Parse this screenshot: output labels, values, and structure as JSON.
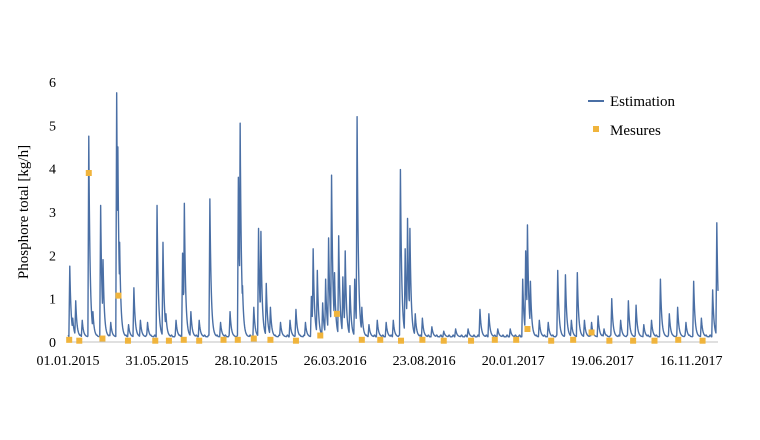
{
  "chart_data": {
    "type": "line",
    "title": "",
    "xlabel": "",
    "ylabel": "Phosphore total [kg/h]",
    "ylim": [
      0,
      6
    ],
    "yticks": [
      0,
      1,
      2,
      3,
      4,
      5,
      6
    ],
    "xlim": [
      "2015-01-01",
      "2017-12-31"
    ],
    "xticks": [
      "2015-01-01",
      "2015-05-31",
      "2015-10-28",
      "2016-03-26",
      "2016-08-23",
      "2017-01-20",
      "2017-06-19",
      "2017-11-16"
    ],
    "xtick_labels": [
      "01.01.2015",
      "31.05.2015",
      "28.10.2015",
      "26.03.2016",
      "23.08.2016",
      "20.01.2017",
      "19.06.2017",
      "16.11.2017"
    ],
    "grid": false,
    "legend_position": "top-right",
    "colors": {
      "estimation": "#4a6fa5",
      "mesures": "#f0b43c"
    },
    "series": [
      {
        "name": "Estimation",
        "kind": "line",
        "baseline": 0.12,
        "peaks": [
          [
            "2015-01-04",
            1.75
          ],
          [
            "2015-01-09",
            0.55
          ],
          [
            "2015-01-14",
            0.95
          ],
          [
            "2015-01-25",
            0.5
          ],
          [
            "2015-02-05",
            4.75
          ],
          [
            "2015-02-12",
            0.7
          ],
          [
            "2015-02-25",
            3.15
          ],
          [
            "2015-03-01",
            1.9
          ],
          [
            "2015-03-14",
            0.45
          ],
          [
            "2015-03-24",
            5.75
          ],
          [
            "2015-03-26",
            4.5
          ],
          [
            "2015-03-29",
            2.3
          ],
          [
            "2015-04-13",
            0.4
          ],
          [
            "2015-04-22",
            1.25
          ],
          [
            "2015-05-03",
            0.5
          ],
          [
            "2015-05-15",
            0.45
          ],
          [
            "2015-05-31",
            3.15
          ],
          [
            "2015-06-10",
            2.3
          ],
          [
            "2015-06-15",
            0.65
          ],
          [
            "2015-07-02",
            0.5
          ],
          [
            "2015-07-13",
            2.05
          ],
          [
            "2015-07-16",
            3.2
          ],
          [
            "2015-07-27",
            0.7
          ],
          [
            "2015-08-10",
            0.5
          ],
          [
            "2015-08-28",
            3.3
          ],
          [
            "2015-09-15",
            0.45
          ],
          [
            "2015-10-01",
            0.7
          ],
          [
            "2015-10-15",
            3.8
          ],
          [
            "2015-10-18",
            5.05
          ],
          [
            "2015-10-22",
            1.3
          ],
          [
            "2015-11-10",
            0.8
          ],
          [
            "2015-11-18",
            2.62
          ],
          [
            "2015-11-22",
            2.55
          ],
          [
            "2015-12-01",
            1.35
          ],
          [
            "2015-12-08",
            0.8
          ],
          [
            "2015-12-25",
            0.45
          ],
          [
            "2016-01-10",
            0.5
          ],
          [
            "2016-01-20",
            0.75
          ],
          [
            "2016-02-05",
            0.45
          ],
          [
            "2016-02-15",
            1.05
          ],
          [
            "2016-02-18",
            2.15
          ],
          [
            "2016-02-25",
            1.65
          ],
          [
            "2016-03-05",
            0.9
          ],
          [
            "2016-03-10",
            1.45
          ],
          [
            "2016-03-15",
            2.4
          ],
          [
            "2016-03-20",
            3.85
          ],
          [
            "2016-03-25",
            1.6
          ],
          [
            "2016-04-01",
            2.45
          ],
          [
            "2016-04-08",
            1.5
          ],
          [
            "2016-04-12",
            2.1
          ],
          [
            "2016-04-20",
            1.3
          ],
          [
            "2016-04-28",
            1.45
          ],
          [
            "2016-05-02",
            5.2
          ],
          [
            "2016-05-10",
            0.8
          ],
          [
            "2016-05-22",
            0.4
          ],
          [
            "2016-06-05",
            0.5
          ],
          [
            "2016-06-20",
            0.45
          ],
          [
            "2016-07-02",
            0.5
          ],
          [
            "2016-07-14",
            3.98
          ],
          [
            "2016-07-22",
            2.15
          ],
          [
            "2016-07-26",
            2.85
          ],
          [
            "2016-07-30",
            2.62
          ],
          [
            "2016-08-08",
            0.65
          ],
          [
            "2016-08-20",
            0.55
          ],
          [
            "2016-09-05",
            0.35
          ],
          [
            "2016-09-25",
            0.25
          ],
          [
            "2016-10-15",
            0.3
          ],
          [
            "2016-11-05",
            0.3
          ],
          [
            "2016-11-25",
            0.75
          ],
          [
            "2016-12-10",
            0.65
          ],
          [
            "2016-12-25",
            0.3
          ],
          [
            "2017-01-15",
            0.3
          ],
          [
            "2017-02-05",
            1.45
          ],
          [
            "2017-02-10",
            2.1
          ],
          [
            "2017-02-13",
            2.7
          ],
          [
            "2017-02-18",
            1.4
          ],
          [
            "2017-03-05",
            0.5
          ],
          [
            "2017-03-20",
            0.45
          ],
          [
            "2017-04-05",
            1.65
          ],
          [
            "2017-04-18",
            1.55
          ],
          [
            "2017-04-28",
            0.5
          ],
          [
            "2017-05-08",
            1.6
          ],
          [
            "2017-05-20",
            0.5
          ],
          [
            "2017-06-01",
            0.45
          ],
          [
            "2017-06-12",
            0.6
          ],
          [
            "2017-06-22",
            0.3
          ],
          [
            "2017-07-05",
            1.0
          ],
          [
            "2017-07-20",
            0.5
          ],
          [
            "2017-08-02",
            0.95
          ],
          [
            "2017-08-15",
            0.85
          ],
          [
            "2017-08-28",
            0.4
          ],
          [
            "2017-09-10",
            0.5
          ],
          [
            "2017-09-25",
            1.45
          ],
          [
            "2017-10-10",
            0.65
          ],
          [
            "2017-10-24",
            0.8
          ],
          [
            "2017-11-07",
            0.45
          ],
          [
            "2017-11-20",
            1.4
          ],
          [
            "2017-12-03",
            0.55
          ],
          [
            "2017-12-22",
            1.2
          ],
          [
            "2017-12-29",
            2.75
          ]
        ]
      },
      {
        "name": "Mesures",
        "kind": "markers",
        "points": [
          [
            "2015-01-03",
            0.05
          ],
          [
            "2015-01-20",
            0.03
          ],
          [
            "2015-02-05",
            3.9
          ],
          [
            "2015-02-28",
            0.08
          ],
          [
            "2015-03-27",
            1.07
          ],
          [
            "2015-04-12",
            0.03
          ],
          [
            "2015-05-28",
            0.03
          ],
          [
            "2015-06-20",
            0.03
          ],
          [
            "2015-07-15",
            0.05
          ],
          [
            "2015-08-10",
            0.03
          ],
          [
            "2015-09-20",
            0.05
          ],
          [
            "2015-10-14",
            0.05
          ],
          [
            "2015-11-10",
            0.08
          ],
          [
            "2015-12-08",
            0.05
          ],
          [
            "2016-01-20",
            0.03
          ],
          [
            "2016-03-01",
            0.15
          ],
          [
            "2016-03-29",
            0.65
          ],
          [
            "2016-05-10",
            0.05
          ],
          [
            "2016-06-10",
            0.05
          ],
          [
            "2016-07-15",
            0.03
          ],
          [
            "2016-08-20",
            0.05
          ],
          [
            "2016-09-25",
            0.03
          ],
          [
            "2016-11-10",
            0.03
          ],
          [
            "2016-12-20",
            0.05
          ],
          [
            "2017-01-25",
            0.05
          ],
          [
            "2017-02-13",
            0.3
          ],
          [
            "2017-03-25",
            0.03
          ],
          [
            "2017-05-01",
            0.05
          ],
          [
            "2017-06-01",
            0.22
          ],
          [
            "2017-07-01",
            0.03
          ],
          [
            "2017-08-10",
            0.03
          ],
          [
            "2017-09-15",
            0.03
          ],
          [
            "2017-10-25",
            0.05
          ],
          [
            "2017-12-05",
            0.03
          ]
        ]
      }
    ]
  }
}
